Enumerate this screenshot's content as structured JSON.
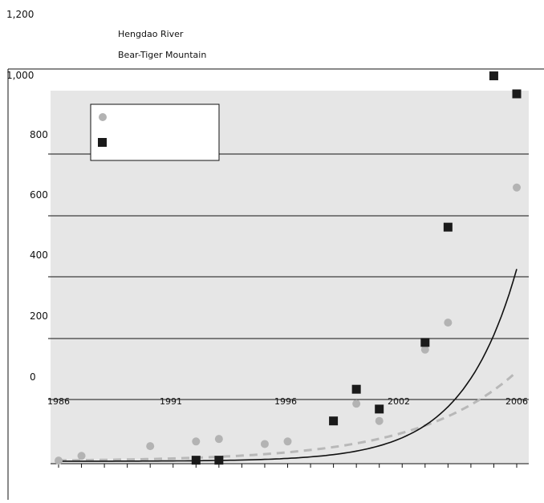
{
  "chart_data": {
    "type": "scatter",
    "title": "",
    "xlabel": "",
    "ylabel": "",
    "x_ticks": [
      "1986",
      "1991",
      "1996",
      "2002",
      "2006"
    ],
    "y_ticks": [
      "1,200",
      "1,000",
      "800",
      "600",
      "400",
      "200",
      "0"
    ],
    "xlim": [
      1986,
      2006
    ],
    "ylim": [
      0,
      1200
    ],
    "grid": true,
    "legend_position": "top-left",
    "series": [
      {
        "name": "Hengdao River",
        "marker": "circle",
        "color": "#b3b3b3",
        "trend_color": "#b8b8b8",
        "trend_style": "dashed",
        "trend": {
          "type": "exponential",
          "a": 2.5,
          "b": 0.23
        },
        "points": [
          {
            "x": 1986,
            "y": 2
          },
          {
            "x": 1987,
            "y": 15
          },
          {
            "x": 1990,
            "y": 42
          },
          {
            "x": 1992,
            "y": 55
          },
          {
            "x": 1993,
            "y": 62
          },
          {
            "x": 1995,
            "y": 48
          },
          {
            "x": 1996,
            "y": 55
          },
          {
            "x": 1999,
            "y": 160
          },
          {
            "x": 2000,
            "y": 112
          },
          {
            "x": 2002,
            "y": 310
          },
          {
            "x": 2003,
            "y": 385
          },
          {
            "x": 2006,
            "y": 760
          }
        ]
      },
      {
        "name": "Bear-Tiger Mountain",
        "marker": "square",
        "color": "#1a1a1a",
        "trend_color": "#111111",
        "trend_style": "solid",
        "trend": {
          "type": "exponential",
          "a": 0.12,
          "b": 0.42
        },
        "points": [
          {
            "x": 1992,
            "y": 3
          },
          {
            "x": 1993,
            "y": 3
          },
          {
            "x": 1998,
            "y": 112
          },
          {
            "x": 1999,
            "y": 200
          },
          {
            "x": 2000,
            "y": 145
          },
          {
            "x": 2002,
            "y": 330
          },
          {
            "x": 2003,
            "y": 650
          },
          {
            "x": 2005,
            "y": 1070
          },
          {
            "x": 2006,
            "y": 1020
          }
        ]
      }
    ]
  }
}
